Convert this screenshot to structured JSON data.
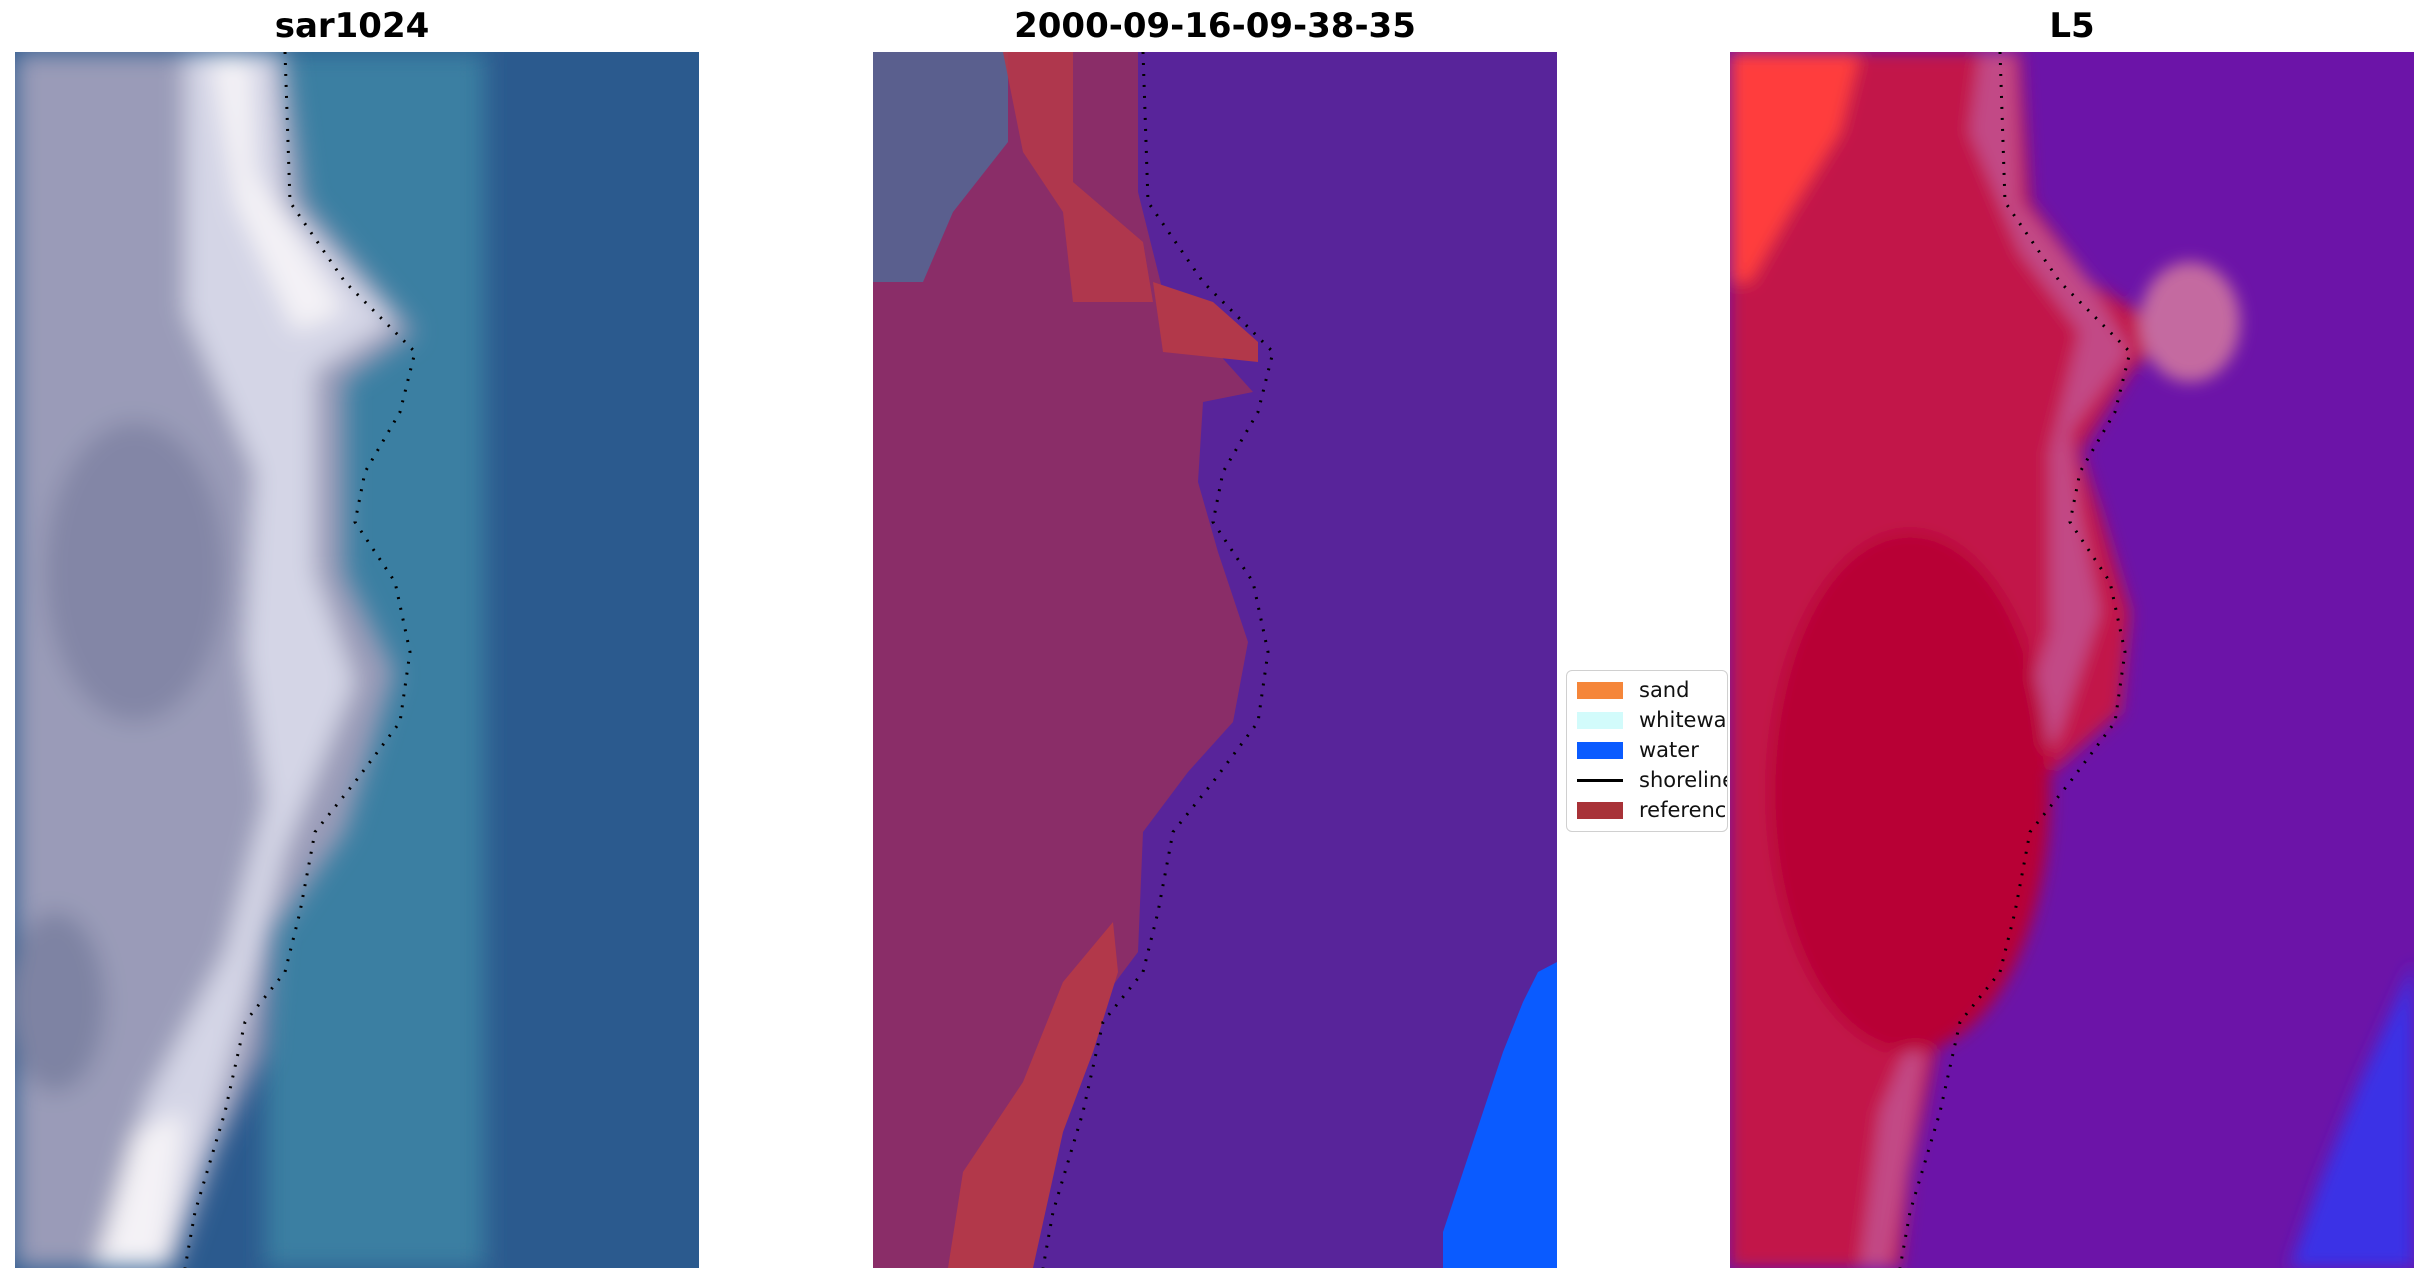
{
  "panels": [
    {
      "title": "sar1024"
    },
    {
      "title": "2000-09-16-09-38-35"
    },
    {
      "title": "L5"
    }
  ],
  "legend": {
    "items": [
      {
        "label": "sand",
        "color": "#f5863a",
        "kind": "patch"
      },
      {
        "label": "whitewater",
        "color": "#d2fbfb",
        "kind": "patch"
      },
      {
        "label": "water",
        "color": "#0a5bff",
        "kind": "patch"
      },
      {
        "label": "shoreline",
        "color": "#000000",
        "kind": "line"
      },
      {
        "label": "reference",
        "color": "#a83238",
        "kind": "patch"
      }
    ]
  },
  "colors": {
    "sar_water": "#2b5a8e",
    "sar_sand": "#9a9bb8",
    "sar_white": "#f2f0f5",
    "class_water": "#58249a",
    "class_land": "#8a2d68",
    "class_sea_blue": "#0a5bff",
    "l5_land": "#c41040",
    "l5_water": "#6c14a8",
    "l5_red": "#ff3a3a"
  }
}
